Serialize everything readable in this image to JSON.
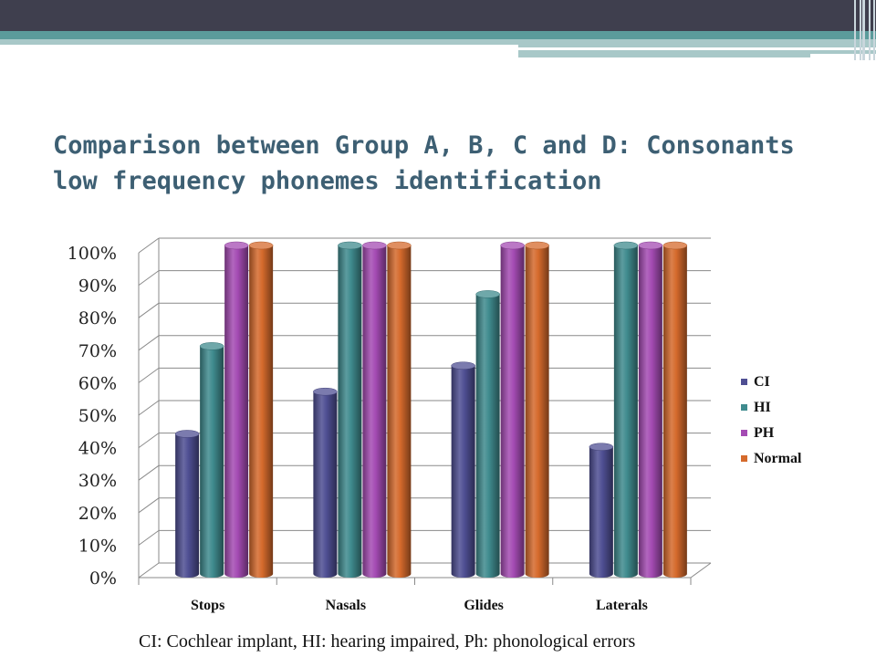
{
  "slide": {
    "title_line1": "Comparison between Group A, B, C and D: Consonants",
    "title_line2": "low frequency phonemes identification",
    "footnote": "CI: Cochlear implant, HI: hearing impaired, Ph: phonological errors"
  },
  "colors": {
    "top_band": "#3f3f4e",
    "accent_teal": "#5b9b9b",
    "title": "#3d5f73"
  },
  "chart_data": {
    "type": "bar",
    "categories": [
      "Stops",
      "Nasals",
      "Glides",
      "Laterals"
    ],
    "series": [
      {
        "name": "CI",
        "color": "#4f4f93",
        "values": [
          42,
          55,
          63,
          38
        ]
      },
      {
        "name": "HI",
        "color": "#3f8b8e",
        "values": [
          69,
          100,
          85,
          100
        ]
      },
      {
        "name": "PH",
        "color": "#a44bb3",
        "values": [
          100,
          100,
          100,
          100
        ]
      },
      {
        "name": "Normal",
        "color": "#d56a2c",
        "values": [
          100,
          100,
          100,
          100
        ]
      }
    ],
    "y_ticks": [
      "0%",
      "10%",
      "20%",
      "30%",
      "40%",
      "50%",
      "60%",
      "70%",
      "80%",
      "90%",
      "100%"
    ],
    "ylim": [
      0,
      100
    ],
    "grid": true,
    "legend": "right",
    "style": "3d-cylinder"
  }
}
